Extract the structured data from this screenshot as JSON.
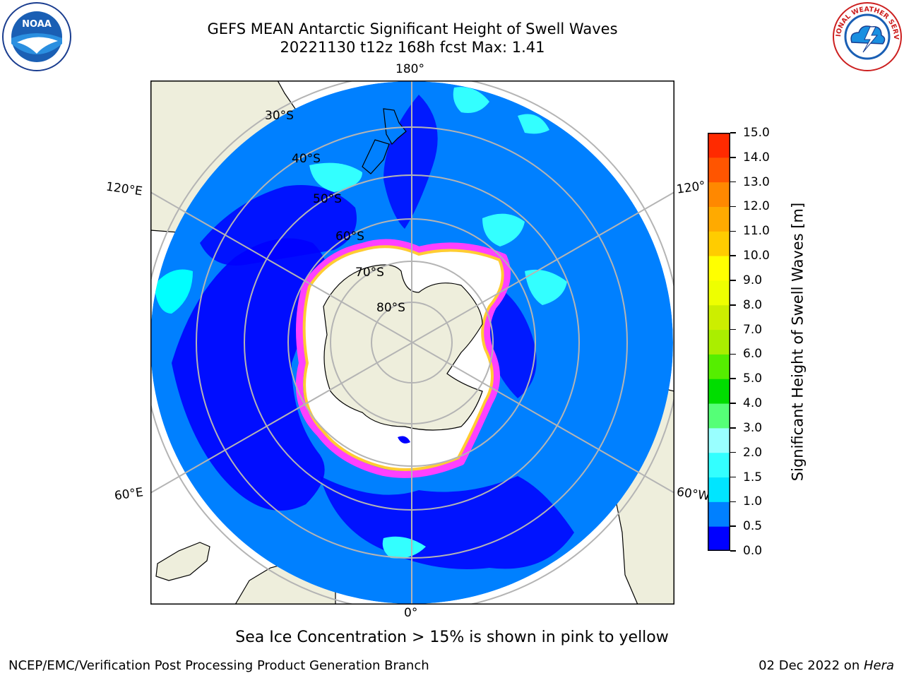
{
  "title": {
    "line1": "GEFS MEAN Antarctic Significant Height of Swell Waves",
    "line2": "20221130 t12z 168h fcst   Max: 1.41"
  },
  "map": {
    "projection": "south-polar-stereographic",
    "lon_labels": {
      "top": "180°",
      "left_upper": "120°E",
      "right_upper": "120°",
      "left_lower": "60°E",
      "right_lower": "60°W",
      "bottom": "0°"
    },
    "lat_labels": [
      "30°S",
      "40°S",
      "50°S",
      "60°S",
      "70°S",
      "80°S"
    ],
    "colors": {
      "land": "#eeeedc",
      "ocean_main": "#0080ff",
      "ocean_low": "#0000ff",
      "swell_cyan": "#00ffff",
      "ice": "#ffffff",
      "ice_edge_pink": "#ff40ff",
      "ice_edge_yellow": "#ffcc33",
      "grid": "#b4b4b4"
    }
  },
  "colorbar": {
    "label": "Significant Height of Swell Waves [m]",
    "ticks": [
      "0.0",
      "0.5",
      "1.0",
      "1.5",
      "2.0",
      "3.0",
      "4.0",
      "5.0",
      "6.0",
      "7.0",
      "8.0",
      "9.0",
      "10.0",
      "11.0",
      "12.0",
      "13.0",
      "14.0",
      "15.0"
    ],
    "colors": [
      "#0000ff",
      "#0080ff",
      "#00e5ff",
      "#33ffff",
      "#99ffff",
      "#55ff77",
      "#00dd00",
      "#55ee00",
      "#aaee00",
      "#ccee00",
      "#eeff00",
      "#ffff00",
      "#ffcc00",
      "#ffaa00",
      "#ff8800",
      "#ff5500",
      "#ff2a00"
    ]
  },
  "note": "Sea Ice Concentration > 15% is shown in pink to yellow",
  "footer": {
    "left": "NCEP/EMC/Verification Post Processing Product Generation Branch",
    "right_prefix": "02 Dec 2022 on ",
    "right_host": "Hera"
  },
  "logos": {
    "noaa": "NOAA",
    "nws": "NATIONAL WEATHER SERVICE"
  }
}
